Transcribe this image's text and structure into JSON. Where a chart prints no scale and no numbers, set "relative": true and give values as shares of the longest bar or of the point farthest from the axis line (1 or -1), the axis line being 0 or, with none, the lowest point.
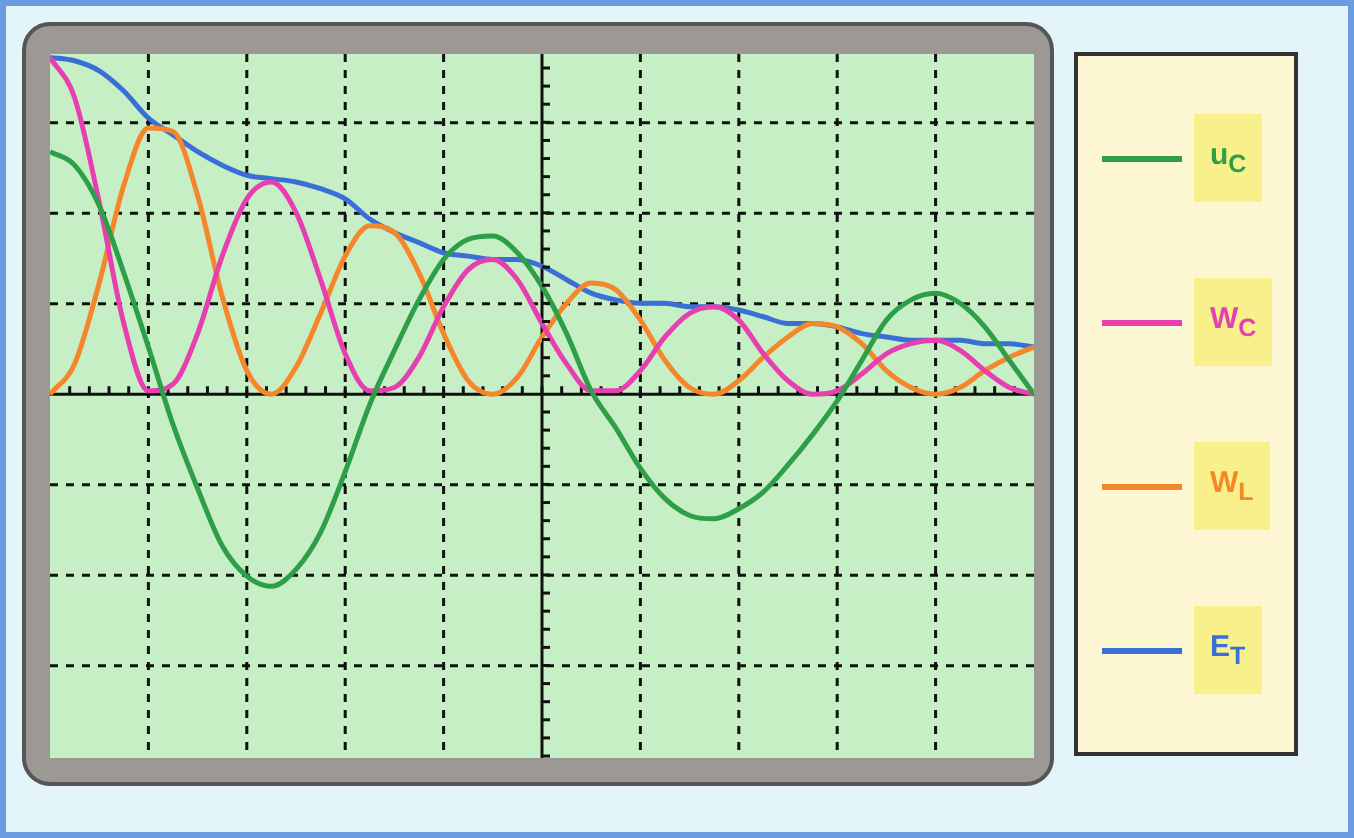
{
  "chart_data": {
    "type": "line",
    "relative": true,
    "grid": true,
    "legend": "right",
    "marker": "none",
    "line_style": "solid",
    "categories": [
      null,
      null,
      null,
      null,
      null,
      null,
      null,
      null,
      null,
      null,
      null,
      null,
      null,
      null,
      null,
      null,
      null,
      null,
      null,
      null,
      null,
      null,
      null,
      null,
      null,
      null,
      null,
      null,
      null,
      null,
      null,
      null,
      null,
      null,
      null,
      null,
      null,
      null,
      null,
      null,
      null
    ],
    "series": [
      {
        "name": "u$_{C}$",
        "color": "#2e9e48",
        "values": [
          0.72,
          0.68,
          0.56,
          0.36,
          0.14,
          -0.09,
          -0.28,
          -0.45,
          -0.54,
          -0.57,
          -0.52,
          -0.41,
          -0.23,
          -0.03,
          0.13,
          0.28,
          0.4,
          0.46,
          0.47,
          0.42,
          0.32,
          0.18,
          0.01,
          -0.1,
          -0.22,
          -0.31,
          -0.36,
          -0.37,
          -0.34,
          -0.29,
          -0.21,
          -0.12,
          -0.02,
          0.1,
          0.22,
          0.28,
          0.3,
          0.27,
          0.2,
          0.1,
          0
        ]
      },
      {
        "name": "W$_{C}$",
        "color": "#e83fb0",
        "values": [
          1,
          0.88,
          0.57,
          0.21,
          0.01,
          0.03,
          0.18,
          0.41,
          0.58,
          0.63,
          0.54,
          0.34,
          0.12,
          0.01,
          0.02,
          0.11,
          0.26,
          0.37,
          0.4,
          0.34,
          0.21,
          0.09,
          0.01,
          0.01,
          0.07,
          0.17,
          0.24,
          0.26,
          0.22,
          0.12,
          0.04,
          0,
          0.01,
          0.06,
          0.12,
          0.15,
          0.16,
          0.13,
          0.07,
          0.02,
          0
        ]
      },
      {
        "name": "W$_{L}$",
        "color": "#f5862a",
        "values": [
          0,
          0.09,
          0.33,
          0.62,
          0.79,
          0.78,
          0.59,
          0.29,
          0.07,
          0,
          0.08,
          0.24,
          0.41,
          0.5,
          0.48,
          0.36,
          0.18,
          0.04,
          0,
          0.05,
          0.17,
          0.27,
          0.33,
          0.31,
          0.22,
          0.1,
          0.02,
          0,
          0.04,
          0.11,
          0.17,
          0.21,
          0.2,
          0.15,
          0.07,
          0.02,
          0,
          0.02,
          0.07,
          0.11,
          0.14
        ]
      },
      {
        "name": "E$_{T}$",
        "color": "#3a6fd8",
        "values": [
          1,
          0.99,
          0.96,
          0.9,
          0.82,
          0.77,
          0.72,
          0.68,
          0.65,
          0.64,
          0.63,
          0.61,
          0.58,
          0.52,
          0.48,
          0.45,
          0.42,
          0.41,
          0.4,
          0.4,
          0.38,
          0.34,
          0.3,
          0.28,
          0.27,
          0.27,
          0.26,
          0.26,
          0.25,
          0.23,
          0.21,
          0.21,
          0.2,
          0.18,
          0.17,
          0.16,
          0.16,
          0.16,
          0.15,
          0.15,
          0.14
        ]
      }
    ]
  }
}
